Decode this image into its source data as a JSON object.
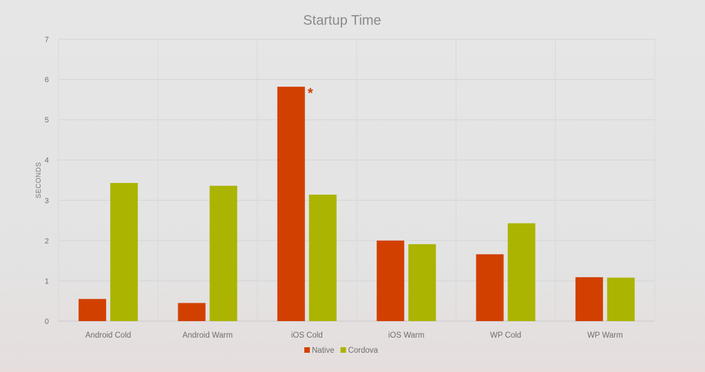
{
  "chart_data": {
    "type": "bar",
    "title": "Startup Time",
    "ylabel": "SECONDS",
    "xlabel": "",
    "ylim": [
      0,
      7
    ],
    "yticks": [
      "0",
      "1",
      "2",
      "3",
      "4",
      "5",
      "6",
      "7"
    ],
    "categories": [
      "Android Cold",
      "Android Warm",
      "iOS Cold",
      "iOS Warm",
      "WP Cold",
      "WP Warm"
    ],
    "series": [
      {
        "name": "Native",
        "color": "#d24000",
        "values": [
          0.55,
          0.45,
          5.82,
          2.0,
          1.66,
          1.09
        ]
      },
      {
        "name": "Cordova",
        "color": "#abb400",
        "values": [
          3.43,
          3.36,
          3.14,
          1.91,
          2.43,
          1.08
        ]
      }
    ],
    "grid": true,
    "legend_position": "bottom",
    "annotations": [
      {
        "text": "*",
        "category": "iOS Cold",
        "series": "Native",
        "color": "#d24000"
      }
    ]
  }
}
